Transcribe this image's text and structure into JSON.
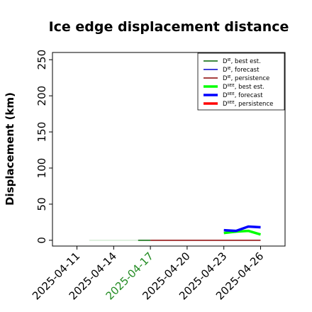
{
  "chart_data": {
    "type": "line",
    "title": "Ice edge displacement distance",
    "ylabel": "Displacement (km)",
    "xlabel": "",
    "ylim": [
      -8,
      260
    ],
    "xlim": [
      "2025-04-09",
      "2025-04-28"
    ],
    "yticks": [
      0,
      50,
      100,
      150,
      200,
      250
    ],
    "xticks": [
      {
        "label": "2025-04-11",
        "date": "2025-04-11",
        "color": "#000000"
      },
      {
        "label": "2025-04-14",
        "date": "2025-04-14",
        "color": "#000000"
      },
      {
        "label": "2025-04-17",
        "date": "2025-04-17",
        "color": "#228b22"
      },
      {
        "label": "2025-04-20",
        "date": "2025-04-20",
        "color": "#000000"
      },
      {
        "label": "2025-04-23",
        "date": "2025-04-23",
        "color": "#000000"
      },
      {
        "label": "2025-04-26",
        "date": "2025-04-26",
        "color": "#000000"
      }
    ],
    "legend_position": "top-right",
    "series": [
      {
        "name": "D^IE, best est.",
        "color": "#006400",
        "width": 1.5,
        "x": [
          "2025-04-16",
          "2025-04-17"
        ],
        "y": [
          0,
          0
        ]
      },
      {
        "name": "D^IE, forecast",
        "color": "#0000cd",
        "width": 1.5,
        "x": [],
        "y": []
      },
      {
        "name": "D^IE, persistence",
        "color": "#8b0000",
        "width": 1.5,
        "x": [
          "2025-04-17",
          "2025-04-20",
          "2025-04-23",
          "2025-04-26"
        ],
        "y": [
          0,
          0,
          0,
          0
        ]
      },
      {
        "name": "D^IIEE, best est.",
        "color": "#00ff00",
        "width": 3.5,
        "x": [
          "2025-04-23",
          "2025-04-24",
          "2025-04-25",
          "2025-04-26"
        ],
        "y": [
          10,
          12,
          13,
          8
        ]
      },
      {
        "name": "D^IIEE, forecast",
        "color": "#0000ff",
        "width": 3.5,
        "x": [
          "2025-04-23",
          "2025-04-24",
          "2025-04-25",
          "2025-04-26"
        ],
        "y": [
          14,
          13,
          19,
          18
        ]
      },
      {
        "name": "D^IIEE, persistence",
        "color": "#ff0000",
        "width": 3.5,
        "x": [],
        "y": []
      }
    ],
    "background_segments": [
      {
        "color": "#d3ecd3",
        "x": [
          "2025-04-12",
          "2025-04-16"
        ],
        "y": [
          0,
          0
        ]
      }
    ]
  }
}
